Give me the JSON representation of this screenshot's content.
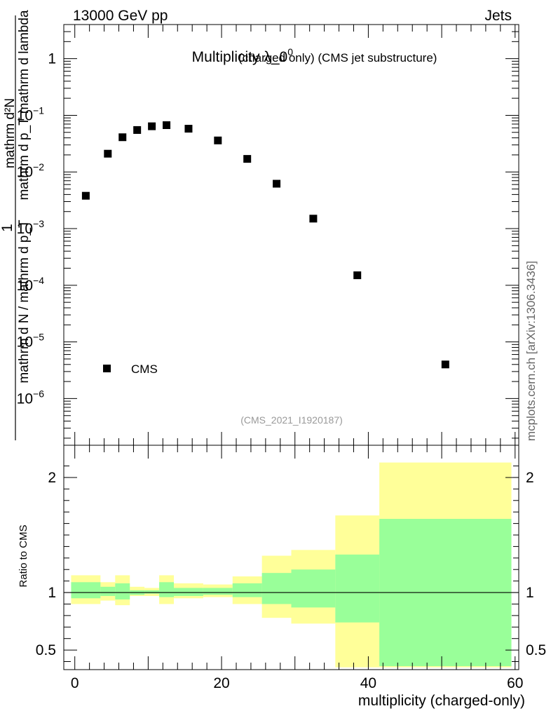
{
  "header": {
    "left": "13000 GeV pp",
    "right": "Jets"
  },
  "side_label": "mcplots.cern.ch [arXiv:1306.3436]",
  "analysis_id": "(CMS_2021_I1920187)",
  "chart_data": [
    {
      "type": "scatter",
      "title": "Multiplicity λ_0",
      "title_sup": "0",
      "subtitle": "(charged only) (CMS jet substructure)",
      "ylabel": {
        "numerator": "mathrm d²N",
        "denominator_upper": "mathrm d p_T mathrm d lambda",
        "denominator_lower": "mathrm d N / mathrm d p_T",
        "prefix": "1"
      },
      "yscale": "log",
      "ylim": [
        1.5e-07,
        4
      ],
      "xlim": [
        -1.5,
        60.5
      ],
      "yticks": [
        {
          "value": 1,
          "base": "1",
          "exp": ""
        },
        {
          "value": 0.1,
          "base": "10",
          "exp": "−1"
        },
        {
          "value": 0.01,
          "base": "10",
          "exp": "−2"
        },
        {
          "value": 0.001,
          "base": "10",
          "exp": "−3"
        },
        {
          "value": 0.0001,
          "base": "10",
          "exp": "−4"
        },
        {
          "value": 1e-05,
          "base": "10",
          "exp": "−5"
        },
        {
          "value": 1e-06,
          "base": "10",
          "exp": "−6"
        }
      ],
      "legend": {
        "position": "bottom-left",
        "entries": [
          "CMS"
        ]
      },
      "series": [
        {
          "name": "CMS",
          "marker": "square",
          "color": "#000000",
          "x": [
            1.5,
            4.5,
            6.5,
            8.5,
            10.5,
            12.5,
            15.5,
            19.5,
            23.5,
            27.5,
            32.5,
            38.5,
            50.5
          ],
          "y": [
            0.0038,
            0.021,
            0.041,
            0.055,
            0.064,
            0.067,
            0.058,
            0.036,
            0.017,
            0.0062,
            0.0015,
            0.00015,
            4e-06
          ]
        }
      ]
    },
    {
      "type": "area",
      "ylabel": "Ratio to CMS",
      "xlabel": "multiplicity (charged-only)",
      "xlim": [
        -1.5,
        60.5
      ],
      "ylim": [
        0.33,
        2.28
      ],
      "xticks": [
        0,
        20,
        40,
        60
      ],
      "yticks": [
        0.5,
        1,
        2
      ],
      "reference_line": 1,
      "bins": {
        "edges": [
          -0.5,
          3.5,
          5.5,
          7.5,
          9.5,
          11.5,
          13.5,
          17.5,
          21.5,
          25.5,
          29.5,
          35.5,
          41.5,
          59.5
        ],
        "outer_band": {
          "color": "#ffff99",
          "low": [
            0.9,
            0.93,
            0.89,
            0.97,
            0.97,
            0.9,
            0.95,
            0.96,
            0.9,
            0.78,
            0.73,
            0.35,
            0.35
          ],
          "high": [
            1.15,
            1.09,
            1.15,
            1.05,
            1.04,
            1.15,
            1.08,
            1.07,
            1.14,
            1.32,
            1.37,
            1.67,
            2.13
          ]
        },
        "inner_band": {
          "color": "#99ff99",
          "low": [
            0.95,
            0.97,
            0.94,
            0.98,
            0.99,
            0.96,
            0.97,
            0.98,
            0.96,
            0.9,
            0.87,
            0.74,
            0.36
          ],
          "high": [
            1.09,
            1.05,
            1.08,
            1.02,
            1.02,
            1.09,
            1.04,
            1.04,
            1.08,
            1.17,
            1.2,
            1.33,
            1.64
          ]
        }
      }
    }
  ]
}
